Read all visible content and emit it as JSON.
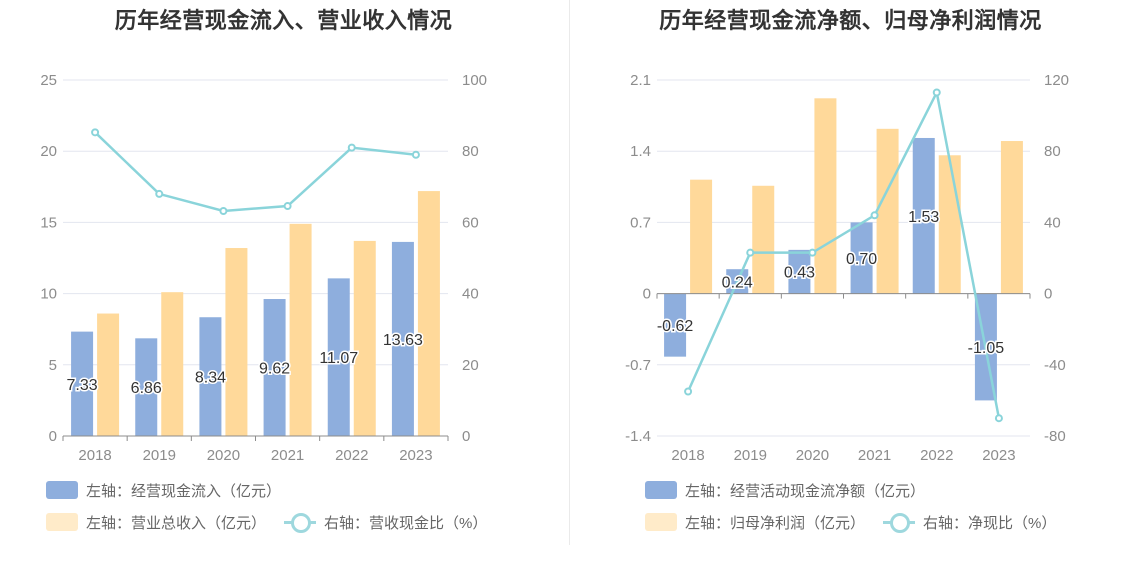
{
  "chart_data": [
    {
      "type": "bar",
      "title": "历年经营现金流入、营业收入情况",
      "categories": [
        "2018",
        "2019",
        "2020",
        "2021",
        "2022",
        "2023"
      ],
      "left_axis": {
        "range": [
          0,
          25
        ],
        "ticks": [
          "0",
          "5",
          "10",
          "15",
          "20",
          "25"
        ]
      },
      "right_axis": {
        "range": [
          0,
          100
        ],
        "ticks": [
          "0",
          "20",
          "40",
          "60",
          "80",
          "100"
        ]
      },
      "bar_series": [
        {
          "name": "左轴：经营现金流入（亿元）",
          "color": "#8eaedd",
          "values": [
            7.33,
            6.86,
            8.34,
            9.62,
            11.07,
            13.63
          ],
          "labels": [
            "7.33",
            "6.86",
            "8.34",
            "9.62",
            "11.07",
            "13.63"
          ]
        },
        {
          "name": "左轴：营业总收入（亿元）",
          "color": "#ffd99a",
          "values": [
            8.6,
            10.1,
            13.2,
            14.9,
            13.7,
            17.2
          ]
        }
      ],
      "line_series": [
        {
          "name": "右轴：营收现金比（%）",
          "color": "#8ad4da",
          "values": [
            85.3,
            68.0,
            63.2,
            64.6,
            81.0,
            79.0
          ]
        }
      ],
      "grid": true,
      "legend_position": "bottom"
    },
    {
      "type": "bar",
      "title": "历年经营现金流净额、归母净利润情况",
      "categories": [
        "2018",
        "2019",
        "2020",
        "2021",
        "2022",
        "2023"
      ],
      "left_axis": {
        "range": [
          -1.4,
          2.1
        ],
        "ticks": [
          "-1.4",
          "-0.7",
          "0",
          "0.7",
          "1.4",
          "2.1"
        ]
      },
      "right_axis": {
        "range": [
          -80,
          120
        ],
        "ticks": [
          "-80",
          "-40",
          "0",
          "40",
          "80",
          "120"
        ]
      },
      "bar_series": [
        {
          "name": "左轴：经营活动现金流净额（亿元）",
          "color": "#8eaedd",
          "values": [
            -0.62,
            0.24,
            0.43,
            0.7,
            1.53,
            -1.05
          ],
          "labels": [
            "-0.62",
            "0.24",
            "0.43",
            "0.70",
            "1.53",
            "-1.05"
          ]
        },
        {
          "name": "左轴：归母净利润（亿元）",
          "color": "#ffd99a",
          "values": [
            1.12,
            1.06,
            1.92,
            1.62,
            1.36,
            1.5
          ]
        }
      ],
      "line_series": [
        {
          "name": "右轴：净现比（%）",
          "color": "#8ad4da",
          "values": [
            -55,
            23,
            23,
            44,
            113,
            -70
          ]
        }
      ],
      "grid": true,
      "legend_position": "bottom"
    }
  ]
}
